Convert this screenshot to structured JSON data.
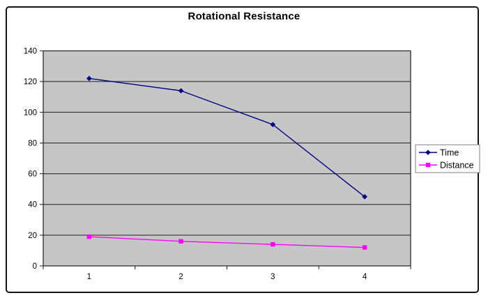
{
  "chart_data": {
    "type": "line",
    "title": "Rotational Resistance",
    "categories": [
      "1",
      "2",
      "3",
      "4"
    ],
    "series": [
      {
        "name": "Time",
        "values": [
          122,
          114,
          92,
          45
        ],
        "color": "#000080",
        "marker": "diamond"
      },
      {
        "name": "Distance",
        "values": [
          19,
          16,
          14,
          12
        ],
        "color": "#ff00ff",
        "marker": "square"
      }
    ],
    "xlabel": "",
    "ylabel": "",
    "ylim": [
      0,
      140
    ],
    "yticks": [
      0,
      20,
      40,
      60,
      80,
      100,
      120,
      140
    ],
    "grid": "horizontal",
    "legend": {
      "position": "right",
      "entries": [
        "Time",
        "Distance"
      ]
    },
    "colors": {
      "page_background": "#ffffff",
      "frame_border": "#151515",
      "plot_background": "#c6c6c6",
      "gridline": "#1f1f1f",
      "axis": "#1f1f1f",
      "text": "#000000",
      "legend_background": "#ffffff",
      "legend_border": "#7f7f7f"
    }
  }
}
